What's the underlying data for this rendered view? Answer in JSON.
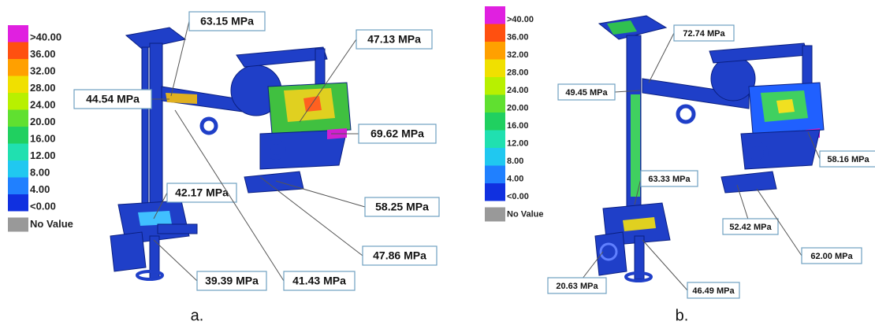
{
  "panels": [
    {
      "legend": [
        ">40.00",
        "36.00",
        "32.00",
        "28.00",
        "24.00",
        "20.00",
        "16.00",
        "12.00",
        "8.00",
        "4.00",
        "<0.00"
      ],
      "no_value": "No Value",
      "callouts": [
        "63.15 MPa",
        "47.13 MPa",
        "44.54 MPa",
        "69.62 MPa",
        "42.17 MPa",
        "58.25 MPa",
        "47.86 MPa",
        "39.39 MPa",
        "41.43 MPa"
      ],
      "caption": "a."
    },
    {
      "legend": [
        ">40.00",
        "36.00",
        "32.00",
        "28.00",
        "24.00",
        "20.00",
        "16.00",
        "12.00",
        "8.00",
        "4.00",
        "<0.00"
      ],
      "no_value": "No Value",
      "callouts": [
        "72.74 MPa",
        "49.45 MPa",
        "58.16 MPa",
        "63.33 MPa",
        "52.42 MPa",
        "62.00 MPa",
        "20.63 MPa",
        "46.49 MPa"
      ],
      "caption": "b."
    }
  ]
}
